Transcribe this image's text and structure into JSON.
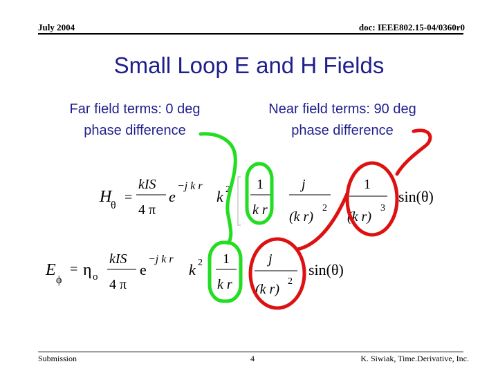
{
  "header": {
    "date": "July 2004",
    "doc_id": "doc: IEEE802.15-04/0360r0"
  },
  "title": "Small Loop E and H Fields",
  "callouts": {
    "far_line1": "Far field terms: 0 deg",
    "far_line2": "phase difference",
    "near_line1": "Near field terms: 90 deg",
    "near_line2": "phase difference"
  },
  "equations": {
    "h_theta": {
      "lhs_symbol": "H",
      "lhs_subscript": "θ",
      "equals": "=",
      "num": "kIS",
      "den": "4 π",
      "exp_base": "e",
      "exponent": "−j k r",
      "k2": "k",
      "k2_sup": "2",
      "t1_num": "1",
      "t1_den": "k r",
      "t2_num": "j",
      "t2_den": "(k r)",
      "t2_den_sup": "2",
      "t3_num": "1",
      "t3_den": "(k r)",
      "t3_den_sup": "3",
      "trig": "sin(θ)"
    },
    "e_phi": {
      "lhs_symbol": "E",
      "lhs_subscript": "ϕ",
      "equals": "=",
      "eta": "η",
      "eta_sub": "o",
      "num": "kIS",
      "den": "4 π",
      "exp_base": "e",
      "exponent": "−j k r",
      "k2": "k",
      "k2_sup": "2",
      "t1_num": "1",
      "t1_den": "k r",
      "t2_num": "j",
      "t2_den": "(k r)",
      "t2_den_sup": "2",
      "trig": "sin(θ)"
    }
  },
  "colors": {
    "title": "#1f1f8c",
    "far_marker": "#22dd22",
    "near_marker": "#dd1111"
  },
  "footer": {
    "left": "Submission",
    "page": "4",
    "right": "K. Siwiak, Time.Derivative, Inc."
  }
}
